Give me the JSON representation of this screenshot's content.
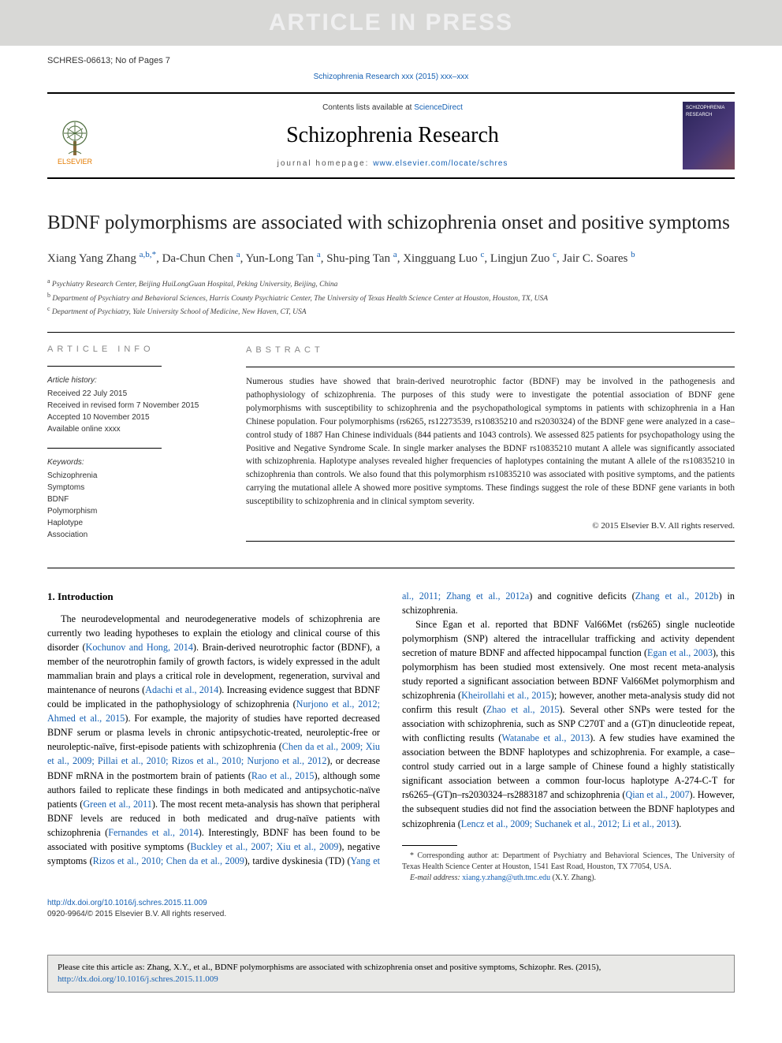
{
  "watermark": "ARTICLE IN PRESS",
  "doc_id": "SCHRES-06613; No of Pages 7",
  "top_citation": "Schizophrenia Research xxx (2015) xxx–xxx",
  "masthead": {
    "contents_prefix": "Contents lists available at ",
    "contents_link": "ScienceDirect",
    "journal_name": "Schizophrenia Research",
    "homepage_prefix": "journal homepage: ",
    "homepage_url": "www.elsevier.com/locate/schres",
    "publisher": "ELSEVIER",
    "cover_label": "SCHIZOPHRENIA RESEARCH"
  },
  "title": "BDNF polymorphisms are associated with schizophrenia onset and positive symptoms",
  "authors_html": "Xiang Yang Zhang <a>a,b,</a><a>*</a>, Da-Chun Chen <a>a</a>, Yun-Long Tan <a>a</a>, Shu-ping Tan <a>a</a>, Xingguang Luo <a>c</a>, Lingjun Zuo <a>c</a>, Jair C. Soares <a>b</a>",
  "affiliations": {
    "a": "Psychiatry Research Center, Beijing HuiLongGuan Hospital, Peking University, Beijing, China",
    "b": "Department of Psychiatry and Behavioral Sciences, Harris County Psychiatric Center, The University of Texas Health Science Center at Houston, Houston, TX, USA",
    "c": "Department of Psychiatry, Yale University School of Medicine, New Haven, CT, USA"
  },
  "article_info": {
    "heading": "ARTICLE INFO",
    "history_hdr": "Article history:",
    "history": [
      "Received 22 July 2015",
      "Received in revised form 7 November 2015",
      "Accepted 10 November 2015",
      "Available online xxxx"
    ],
    "keywords_hdr": "Keywords:",
    "keywords": [
      "Schizophrenia",
      "Symptoms",
      "BDNF",
      "Polymorphism",
      "Haplotype",
      "Association"
    ]
  },
  "abstract": {
    "heading": "ABSTRACT",
    "text": "Numerous studies have showed that brain-derived neurotrophic factor (BDNF) may be involved in the pathogenesis and pathophysiology of schizophrenia. The purposes of this study were to investigate the potential association of BDNF gene polymorphisms with susceptibility to schizophrenia and the psychopathological symptoms in patients with schizophrenia in a Han Chinese population. Four polymorphisms (rs6265, rs12273539, rs10835210 and rs2030324) of the BDNF gene were analyzed in a case–control study of 1887 Han Chinese individuals (844 patients and 1043 controls). We assessed 825 patients for psychopathology using the Positive and Negative Syndrome Scale. In single marker analyses the BDNF rs10835210 mutant A allele was significantly associated with schizophrenia. Haplotype analyses revealed higher frequencies of haplotypes containing the mutant A allele of the rs10835210 in schizophrenia than controls. We also found that this polymorphism rs10835210 was associated with positive symptoms, and the patients carrying the mutational allele A showed more positive symptoms. These findings suggest the role of these BDNF gene variants in both susceptibility to schizophrenia and in clinical symptom severity.",
    "copyright": "© 2015 Elsevier B.V. All rights reserved."
  },
  "intro": {
    "heading": "1. Introduction",
    "p1_a": "The neurodevelopmental and neurodegenerative models of schizophrenia are currently two leading hypotheses to explain the etiology and clinical course of this disorder (",
    "p1_ref1": "Kochunov and Hong, 2014",
    "p1_b": "). Brain-derived neurotrophic factor (BDNF), a member of the neurotrophin family of growth factors, is widely expressed in the adult mammalian brain and plays a critical role in development, regeneration, survival and maintenance of neurons (",
    "p1_ref2": "Adachi et al., 2014",
    "p1_c": "). Increasing evidence suggest that BDNF could be implicated in the pathophysiology of schizophrenia (",
    "p1_ref3": "Nurjono et al., 2012; Ahmed et al., 2015",
    "p1_d": "). For example, the majority of studies have reported decreased BDNF serum or plasma levels in chronic antipsychotic-treated, neuroleptic-free or neuroleptic-naïve, first-episode patients with schizophrenia (",
    "p1_ref4": "Chen da et al., 2009; Xiu et al., 2009; Pillai et al., 2010; Rizos et al., 2010; Nurjono et al., 2012",
    "p1_e": "), or decrease BDNF mRNA in the postmortem brain of patients (",
    "p1_ref5": "Rao et al., 2015",
    "p1_f": "), although some authors failed to replicate these findings in both medicated and antipsychotic-naïve patients (",
    "p1_ref6": "Green et al., 2011",
    "p1_g": "). The most recent meta-analysis has shown that peripheral BDNF levels are reduced in both medicated and drug-naïve patients with schizophrenia (",
    "p1_ref7": "Fernandes et al., 2014",
    "p1_h": "). Interestingly, BDNF has been found to be associated with positive symptoms (",
    "p1_ref8": "Buckley et al., 2007; Xiu et al., 2009",
    "p1_i": "), negative symptoms (",
    "p1_ref9": "Rizos et al., 2010; Chen da et al., 2009",
    "p1_j": "), tardive dyskinesia (TD) (",
    "p1_ref10": "Yang et al., 2011; Zhang et al., 2012a",
    "p1_k": ") and cognitive deficits (",
    "p1_ref11": "Zhang et al., 2012b",
    "p1_l": ") in schizophrenia.",
    "p2_a": "Since Egan et al. reported that BDNF Val66Met (rs6265) single nucleotide polymorphism (SNP) altered the intracellular trafficking and activity dependent secretion of mature BDNF and affected hippocampal function (",
    "p2_ref1": "Egan et al., 2003",
    "p2_b": "), this polymorphism has been studied most extensively. One most recent meta-analysis study reported a significant association between BDNF Val66Met polymorphism and schizophrenia (",
    "p2_ref2": "Kheirollahi et al., 2015",
    "p2_c": "); however, another meta-analysis study did not confirm this result (",
    "p2_ref3": "Zhao et al., 2015",
    "p2_d": "). Several other SNPs were tested for the association with schizophrenia, such as SNP C270T and a (GT)n dinucleotide repeat, with conflicting results (",
    "p2_ref4": "Watanabe et al., 2013",
    "p2_e": "). A few studies have examined the association between the BDNF haplotypes and schizophrenia. For example, a case–control study carried out in a large sample of Chinese found a highly statistically significant association between a common four-locus haplotype A-274-C-T for rs6265–(GT)n–rs2030324–rs2883187 and schizophrenia (",
    "p2_ref5": "Qian et al., 2007",
    "p2_f": "). However, the subsequent studies did not find the association between the BDNF haplotypes and schizophrenia (",
    "p2_ref6": "Lencz et al., 2009; Suchanek et al., 2012; Li et al., 2013",
    "p2_g": ")."
  },
  "footnotes": {
    "corr": "Corresponding author at: Department of Psychiatry and Behavioral Sciences, The University of Texas Health Science Center at Houston, 1541 East Road, Houston, TX 77054, USA.",
    "email_label": "E-mail address: ",
    "email": "xiang.y.zhang@uth.tmc.edu",
    "email_owner": " (X.Y. Zhang)."
  },
  "doi": {
    "url": "http://dx.doi.org/10.1016/j.schres.2015.11.009",
    "rights": "0920-9964/© 2015 Elsevier B.V. All rights reserved."
  },
  "cite_box": {
    "text": "Please cite this article as: Zhang, X.Y., et al., BDNF polymorphisms are associated with schizophrenia onset and positive symptoms, Schizophr. Res. (2015), ",
    "link": "http://dx.doi.org/10.1016/j.schres.2015.11.009"
  }
}
